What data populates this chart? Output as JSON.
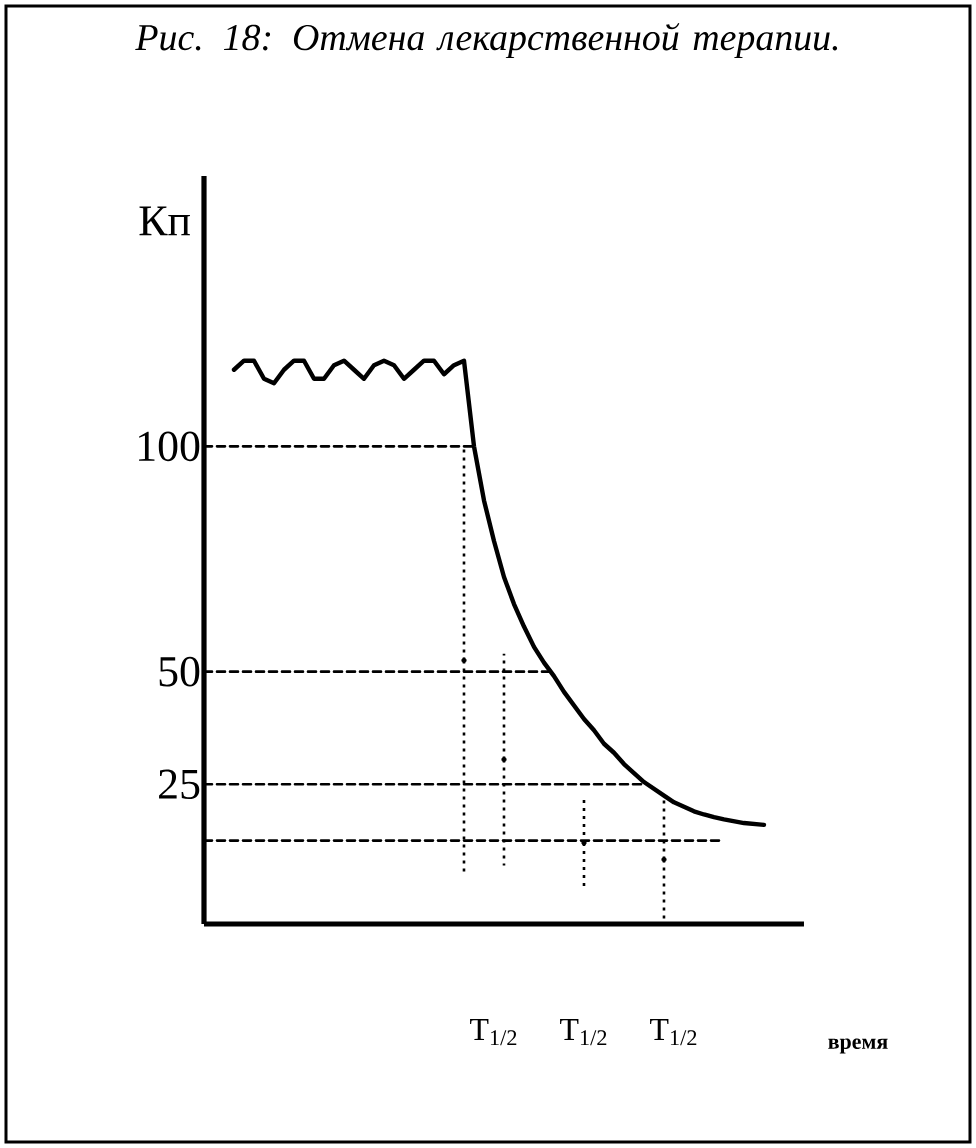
{
  "chart_data": {
    "type": "line",
    "title": "Рис. 18: Отмена лекарственной терапии.",
    "xlabel": "время",
    "ylabel": "Кп",
    "categories": [
      null,
      null,
      null,
      null,
      null,
      null,
      null,
      null,
      null,
      null,
      null,
      null,
      null,
      null,
      null,
      null,
      null,
      null,
      null,
      null,
      null,
      null,
      null,
      null,
      null,
      null,
      null,
      null,
      null,
      "T$_{1/2}$",
      null,
      null,
      null,
      null,
      null,
      null,
      null,
      null,
      "T$_{1/2}$",
      null,
      null,
      null,
      null,
      null,
      null,
      null,
      null,
      "T$_{1/2}$",
      null,
      null,
      null,
      null,
      null,
      null,
      null,
      null,
      null,
      null,
      null,
      null,
      null
    ],
    "ylim": [
      -6,
      160
    ],
    "yticks": [
      25,
      50,
      100
    ],
    "series": [
      {
        "color": "#000000",
        "line_style": "solid",
        "values": [
          null,
          null,
          null,
          117,
          119,
          119,
          115,
          114,
          117,
          119,
          119,
          115,
          115,
          118,
          119,
          117,
          115,
          118,
          119,
          118,
          115,
          117,
          119,
          119,
          116,
          118,
          119,
          100,
          88,
          79,
          71,
          65,
          60,
          55.5,
          52,
          49,
          45.5,
          42.5,
          39.5,
          37,
          34,
          32,
          29.5,
          27.5,
          25.5,
          24,
          22.5,
          21,
          20,
          19,
          18.3,
          17.7,
          17.2,
          16.8,
          16.4,
          16.2,
          16,
          null,
          null,
          null,
          null
        ]
      },
      {
        "color": "#000000",
        "line_style": "dashed",
        "values": [
          100,
          100,
          100,
          100,
          100,
          100,
          100,
          100,
          100,
          100,
          100,
          100,
          100,
          100,
          100,
          100,
          100,
          100,
          100,
          100,
          100,
          100,
          100,
          100,
          100,
          100,
          100,
          100,
          null,
          null,
          null,
          null,
          null,
          null,
          null,
          null,
          null,
          null,
          null,
          null,
          null,
          null,
          null,
          null,
          null,
          null,
          null,
          null,
          null,
          null,
          null,
          null,
          null,
          null,
          null,
          null,
          null,
          null,
          null,
          null,
          null
        ]
      },
      {
        "color": "#000000",
        "line_style": "dashed",
        "values": [
          50,
          50,
          50,
          50,
          50,
          50,
          50,
          50,
          50,
          50,
          50,
          50,
          50,
          50,
          50,
          50,
          50,
          50,
          50,
          50,
          50,
          50,
          50,
          50,
          50,
          50,
          50,
          50,
          50,
          50,
          50,
          50,
          50,
          50,
          50,
          50,
          null,
          null,
          null,
          null,
          null,
          null,
          null,
          null,
          null,
          null,
          null,
          null,
          null,
          null,
          null,
          null,
          null,
          null,
          null,
          null,
          null,
          null,
          null,
          null,
          null
        ]
      },
      {
        "color": "#000000",
        "line_style": "dashed",
        "values": [
          25,
          25,
          25,
          25,
          25,
          25,
          25,
          25,
          25,
          25,
          25,
          25,
          25,
          25,
          25,
          25,
          25,
          25,
          25,
          25,
          25,
          25,
          25,
          25,
          25,
          25,
          25,
          25,
          25,
          25,
          25,
          25,
          25,
          25,
          25,
          25,
          25,
          25,
          25,
          25,
          25,
          25,
          25,
          25,
          25,
          null,
          null,
          null,
          null,
          null,
          null,
          null,
          null,
          null,
          null,
          null,
          null,
          null,
          null,
          null,
          null
        ]
      },
      {
        "color": "#000000",
        "line_style": "dashed",
        "values": [
          12.5,
          12.5,
          12.5,
          12.5,
          12.5,
          12.5,
          12.5,
          12.5,
          12.5,
          12.5,
          12.5,
          12.5,
          12.5,
          12.5,
          12.5,
          12.5,
          12.5,
          12.5,
          12.5,
          12.5,
          12.5,
          12.5,
          12.5,
          12.5,
          12.5,
          12.5,
          12.5,
          12.5,
          12.5,
          12.5,
          12.5,
          12.5,
          12.5,
          12.5,
          12.5,
          12.5,
          12.5,
          12.5,
          12.5,
          12.5,
          12.5,
          12.5,
          12.5,
          12.5,
          12.5,
          12.5,
          12.5,
          12.5,
          12.5,
          12.5,
          12.5,
          12.5,
          12.5,
          null,
          null,
          null,
          null,
          null,
          null,
          null,
          null
        ]
      },
      {
        "type": "scatter",
        "marker": "circle",
        "color": "#000000",
        "line_style": "dotted",
        "values": [
          null,
          null,
          null,
          null,
          null,
          null,
          null,
          null,
          null,
          null,
          null,
          null,
          null,
          null,
          null,
          null,
          null,
          null,
          null,
          null,
          null,
          null,
          null,
          null,
          null,
          null,
          52.5,
          null,
          null,
          null,
          30.5,
          null,
          null,
          null,
          null,
          null,
          null,
          null,
          12,
          null,
          null,
          null,
          null,
          null,
          null,
          null,
          8.3,
          null,
          null,
          null,
          null,
          null,
          null,
          null,
          null,
          null,
          null,
          null,
          null,
          null,
          null
        ],
        "errors": [
          null,
          null,
          null,
          null,
          null,
          null,
          null,
          null,
          null,
          null,
          null,
          null,
          null,
          null,
          null,
          null,
          null,
          null,
          null,
          null,
          null,
          null,
          null,
          null,
          null,
          null,
          47.5,
          null,
          null,
          null,
          23.5,
          null,
          null,
          null,
          null,
          null,
          null,
          null,
          10,
          null,
          null,
          null,
          null,
          null,
          null,
          null,
          14.3,
          null,
          null,
          null,
          null,
          null,
          null,
          null,
          null,
          null,
          null,
          null,
          null,
          null,
          null
        ]
      }
    ]
  }
}
